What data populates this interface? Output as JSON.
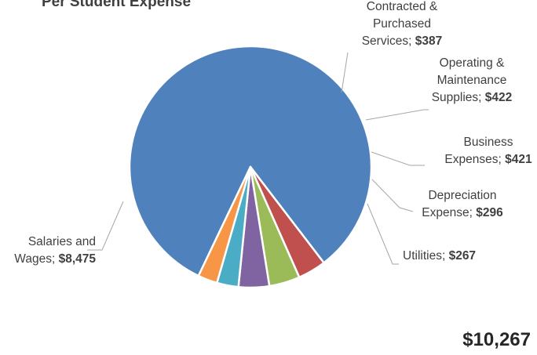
{
  "chart_data": {
    "type": "pie",
    "title": "Per Student Expense",
    "slices": [
      {
        "label_lines": [
          "Salaries and",
          "Wages;"
        ],
        "value_text": "$8,475",
        "value": 8475,
        "color": "#4f81bd"
      },
      {
        "label_lines": [
          "Contracted &",
          "Purchased",
          "Services;"
        ],
        "value_text": "$387",
        "value": 387,
        "color": "#c0504d"
      },
      {
        "label_lines": [
          "Operating &",
          "Maintenance",
          "Supplies;"
        ],
        "value_text": "$422",
        "value": 422,
        "color": "#9bbb59"
      },
      {
        "label_lines": [
          "Business",
          "Expenses;"
        ],
        "value_text": "$421",
        "value": 421,
        "color": "#8064a2"
      },
      {
        "label_lines": [
          "Depreciation",
          "Expense;"
        ],
        "value_text": "$296",
        "value": 296,
        "color": "#4bacc6"
      },
      {
        "label_lines": [
          "Utilities;"
        ],
        "value_text": "$267",
        "value": 267,
        "color": "#f79646"
      }
    ],
    "total_text": "$10,267",
    "total": 10267
  }
}
